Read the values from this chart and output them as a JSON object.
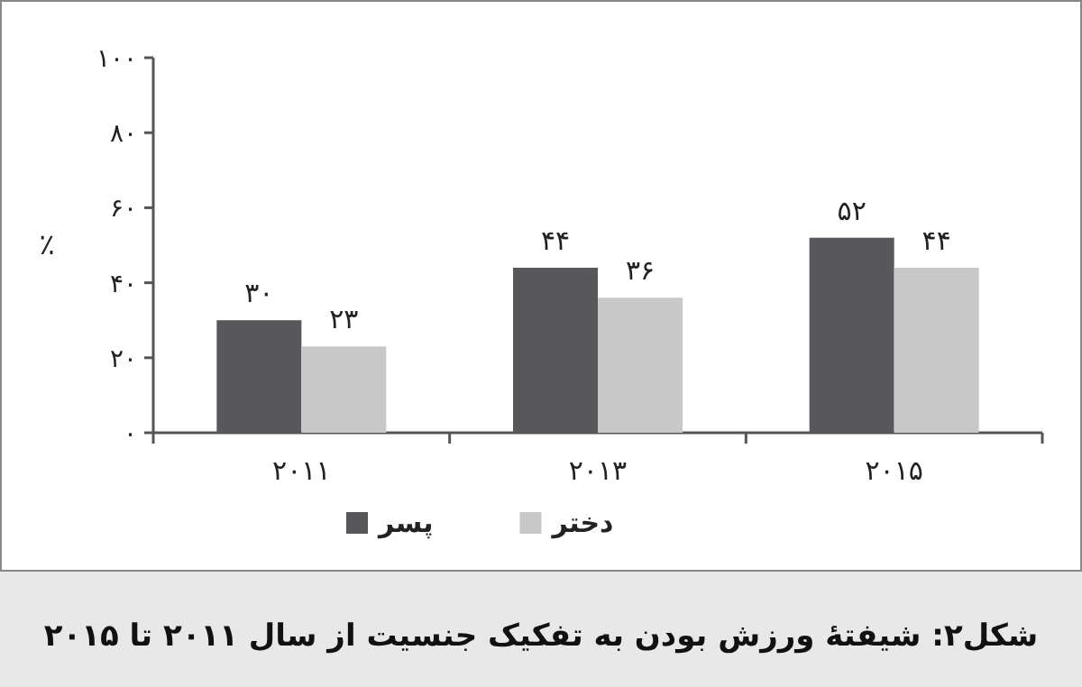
{
  "chart_data": {
    "type": "bar",
    "ylabel": "٪",
    "categories": [
      "۲۰۱۱",
      "۲۰۱۳",
      "۲۰۱۵"
    ],
    "series": [
      {
        "name": "پسر",
        "color": "#58585a",
        "values": [
          30,
          44,
          52
        ],
        "value_labels": [
          "۳۰",
          "۴۴",
          "۵۲"
        ]
      },
      {
        "name": "دختر",
        "color": "#c8c8c8",
        "values": [
          23,
          36,
          44
        ],
        "value_labels": [
          "۲۳",
          "۳۶",
          "۴۴"
        ]
      }
    ],
    "ylim": [
      0,
      100
    ],
    "yticks": [
      {
        "value": 0,
        "label": "۰"
      },
      {
        "value": 20,
        "label": "۲۰"
      },
      {
        "value": 40,
        "label": "۴۰"
      },
      {
        "value": 60,
        "label": "۶۰"
      },
      {
        "value": 80,
        "label": "۸۰"
      },
      {
        "value": 100,
        "label": "۱۰۰"
      }
    ],
    "grid": false,
    "legend": "bottom",
    "annotations": [
      "شکل۲: شیفتهٔ ورزش بودن به تفکیک جنسیت از سال ۲۰۱۱ تا ۲۰۱۵"
    ]
  }
}
